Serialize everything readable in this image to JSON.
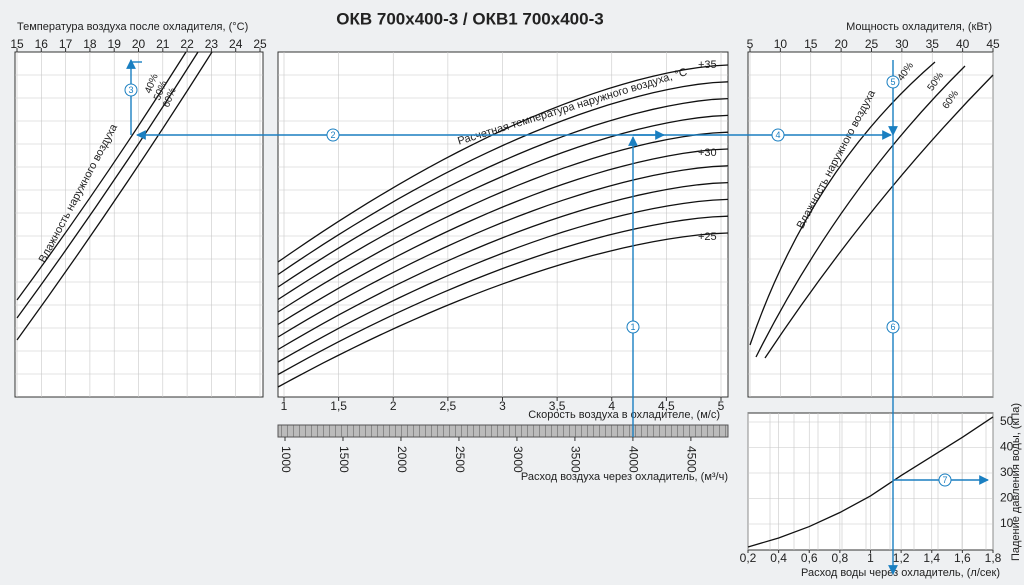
{
  "title": "ОКВ 700х400-3 / ОКВ1 700х400-3",
  "steps": [
    "1",
    "2",
    "3",
    "4",
    "5",
    "6",
    "7"
  ],
  "chart_data": [
    {
      "type": "nomogram",
      "title": "Температура воздуха после охладителя, (°C)",
      "xlim": [
        15,
        25
      ],
      "xticks": [
        15,
        16,
        17,
        18,
        19,
        20,
        21,
        22,
        23,
        24,
        25
      ],
      "annotation": "Влажность наружного воздуха",
      "curve_labels": [
        "40%",
        "50%",
        "60%"
      ]
    },
    {
      "type": "nomogram",
      "xlabel": "Скорость воздуха в охладителе, (м/с)",
      "xlim": [
        1,
        5
      ],
      "xticks": [
        1,
        {
          "value": 1.5,
          "label": "1,5"
        },
        2,
        {
          "value": 2.5,
          "label": "2,5"
        },
        3,
        {
          "value": 3.5,
          "label": "3,5"
        },
        4,
        {
          "value": 4.5,
          "label": "4,5"
        },
        5
      ],
      "x2label": "Расход воздуха через охладитель, (м³/ч)",
      "x2lim": [
        1000,
        4820
      ],
      "x2ticks": [
        1000,
        1500,
        2000,
        2500,
        3000,
        3500,
        4000,
        4500
      ],
      "annotation": "Расчетная температура наружного воздуха, °C",
      "curve_labels": [
        "+35",
        "+30",
        "+25"
      ]
    },
    {
      "type": "nomogram",
      "title": "Мощность охладителя, (кВт)",
      "xlim": [
        5,
        45
      ],
      "xticks": [
        5,
        10,
        15,
        20,
        25,
        30,
        35,
        40,
        45
      ],
      "annotation": "Влажность наружного воздуха",
      "curve_labels": [
        "40%",
        "50%",
        "60%"
      ]
    },
    {
      "type": "line",
      "xlabel": "Расход воды через охладитель, (л/сек)",
      "ylabel": "Падение давления воды, (кПа)",
      "xlim": [
        0.2,
        1.8
      ],
      "xticks": [
        {
          "value": 0.2,
          "label": "0,2"
        },
        {
          "value": 0.4,
          "label": "0,4"
        },
        {
          "value": 0.6,
          "label": "0,6"
        },
        {
          "value": 0.8,
          "label": "0,8"
        },
        1,
        {
          "value": 1.2,
          "label": "1,2"
        },
        {
          "value": 1.4,
          "label": "1,4"
        },
        {
          "value": 1.6,
          "label": "1,6"
        },
        {
          "value": 1.8,
          "label": "1,8"
        }
      ],
      "ylim": [
        0,
        54
      ],
      "yticks": [
        10,
        20,
        30,
        40,
        50
      ],
      "grid": true,
      "color": "#111111",
      "x": [
        0.2,
        0.4,
        0.6,
        0.8,
        1.0,
        1.2,
        1.4,
        1.6,
        1.8
      ],
      "values": [
        1,
        4.5,
        9,
        14.5,
        21,
        29,
        36.5,
        44,
        52
      ]
    }
  ]
}
